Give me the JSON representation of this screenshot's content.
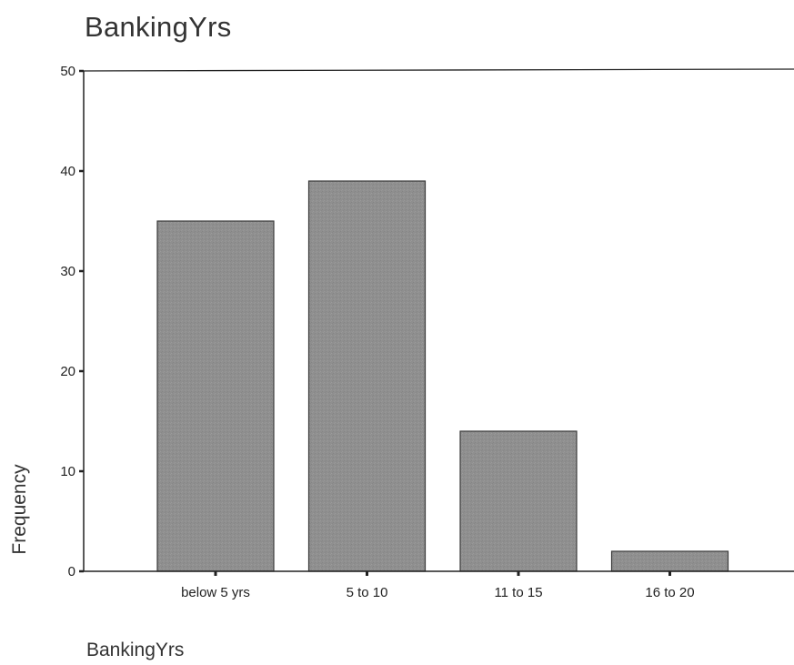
{
  "chart_data": {
    "type": "bar",
    "title": "BankingYrs",
    "xlabel": "BankingYrs",
    "ylabel": "Frequency",
    "categories": [
      "below 5 yrs",
      "5 to 10",
      "11 to 15",
      "16 to 20"
    ],
    "values": [
      35,
      39,
      14,
      2
    ],
    "ylim": [
      0,
      50
    ],
    "yticks": [
      0,
      10,
      20,
      30,
      40,
      50
    ],
    "grid": false,
    "colors": {
      "bar_fill": "#8f8f8f",
      "bar_stroke": "#3a3a3a",
      "axis": "#222222"
    }
  }
}
